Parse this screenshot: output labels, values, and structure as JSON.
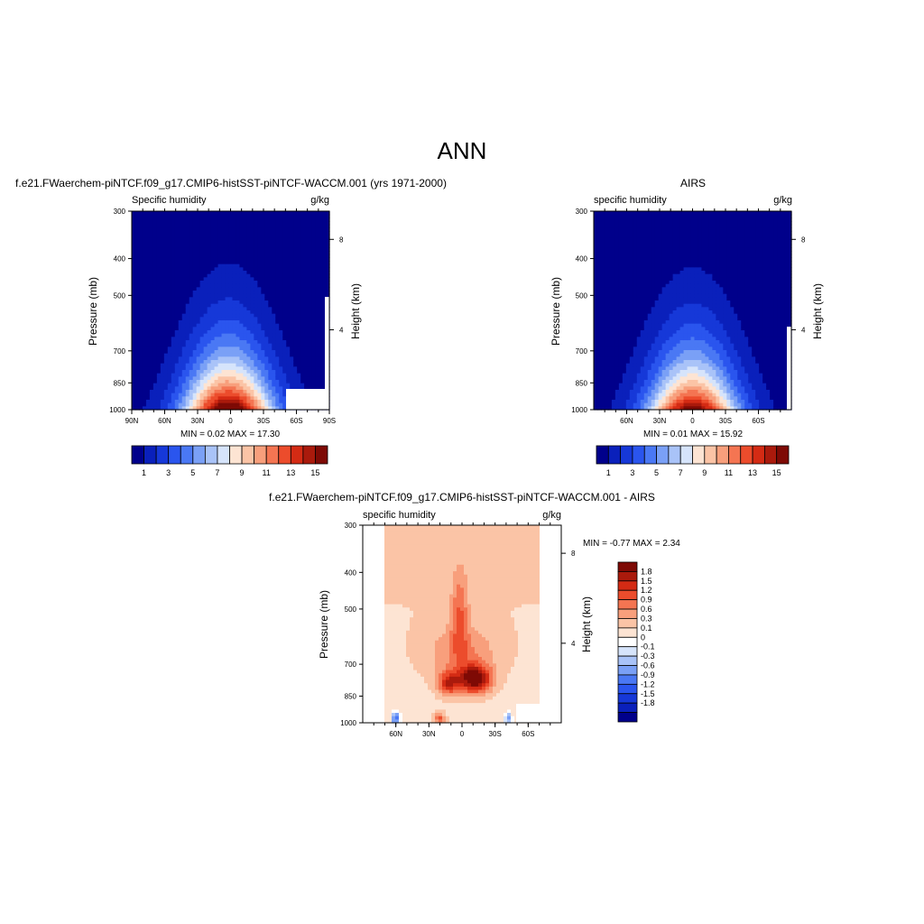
{
  "page_title": "ANN",
  "palette": {
    "main": [
      "#00008b",
      "#0a20bb",
      "#1638d8",
      "#2a55ee",
      "#4a78f4",
      "#7aa0f6",
      "#a9c3f8",
      "#d6e4fb",
      "#fde4d3",
      "#fbc4a6",
      "#f89f7c",
      "#f47552",
      "#ec4c2c",
      "#d42b14",
      "#aa1a0c",
      "#7e0a05"
    ],
    "diff": [
      "#00008b",
      "#0a20bb",
      "#1638d8",
      "#2a55ee",
      "#4a78f4",
      "#7aa0f6",
      "#a9c3f8",
      "#d6e4fb",
      "#ffffff",
      "#fde4d3",
      "#fbc4a6",
      "#f89f7c",
      "#f47552",
      "#ec4c2c",
      "#d42b14",
      "#aa1a0c",
      "#7e0a05"
    ]
  },
  "chart_data": [
    {
      "type": "heatmap",
      "title": "f.e21.FWaerchem-piNTCF.f09_g17.CMIP6-histSST-piNTCF-WACCM.001 (yrs 1971-2000)",
      "left_label": "Specific humidity",
      "right_label": "g/kg",
      "ylabel": "Pressure (mb)",
      "y2label": "Height (km)",
      "y_ticks": [
        300,
        400,
        500,
        700,
        850,
        1000
      ],
      "y2_ticks": [
        8,
        4
      ],
      "x_ticks": [
        "90N",
        "60N",
        "30N",
        "0",
        "30S",
        "60S",
        "90S"
      ],
      "min_max_text": "MIN =   0.02  MAX =  17.30",
      "colorbar_labels": [
        "1",
        "3",
        "5",
        "7",
        "9",
        "11",
        "13",
        "15"
      ],
      "data": {
        "lat_range": [
          90,
          -90
        ],
        "peak": 17.3,
        "min": 0.02
      }
    },
    {
      "type": "heatmap",
      "title": "AIRS",
      "left_label": "specific humidity",
      "right_label": "g/kg",
      "ylabel": "Pressure (mb)",
      "y2label": "Height (km)",
      "y_ticks": [
        300,
        400,
        500,
        700,
        850,
        1000
      ],
      "y2_ticks": [
        8,
        4
      ],
      "x_ticks": [
        "60N",
        "30N",
        "0",
        "30S",
        "60S"
      ],
      "min_max_text": "MIN =   0.01  MAX =  15.92",
      "colorbar_labels": [
        "1",
        "3",
        "5",
        "7",
        "9",
        "11",
        "13",
        "15"
      ],
      "data": {
        "lat_range": [
          90,
          -90
        ],
        "peak": 15.92,
        "min": 0.01
      }
    },
    {
      "type": "heatmap",
      "title": "f.e21.FWaerchem-piNTCF.f09_g17.CMIP6-histSST-piNTCF-WACCM.001 - AIRS",
      "left_label": "specific humidity",
      "right_label": "g/kg",
      "ylabel": "Pressure (mb)",
      "y2label": "Height (km)",
      "y_ticks": [
        300,
        400,
        500,
        700,
        850,
        1000
      ],
      "y2_ticks": [
        8,
        4
      ],
      "x_ticks": [
        "60N",
        "30N",
        "0",
        "30S",
        "60S"
      ],
      "min_max_text": "MIN =  -0.77  MAX =   2.34",
      "colorbar_labels": [
        "1.8",
        "1.5",
        "1.2",
        "0.9",
        "0.6",
        "0.3",
        "0.1",
        "0",
        "-0.1",
        "-0.3",
        "-0.6",
        "-0.9",
        "-1.2",
        "-1.5",
        "-1.8"
      ],
      "data": {
        "lat_range": [
          90,
          -90
        ],
        "max": 2.34,
        "min": -0.77
      }
    }
  ]
}
